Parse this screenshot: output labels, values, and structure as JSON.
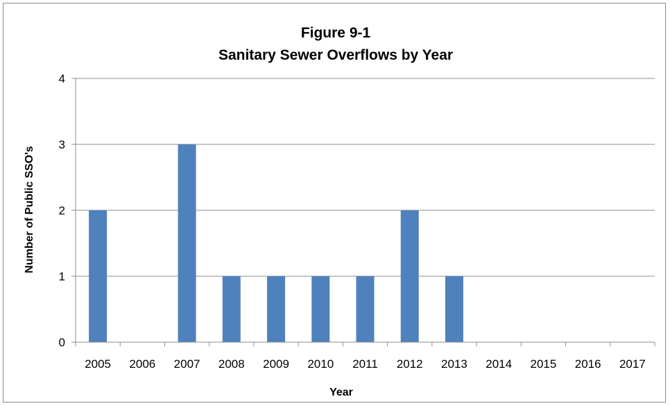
{
  "chart_data": {
    "type": "bar",
    "title": "Figure 9-1",
    "subtitle": "Sanitary Sewer Overflows by Year",
    "xlabel": "Year",
    "ylabel": "Number of Public SSO's",
    "categories": [
      "2005",
      "2006",
      "2007",
      "2008",
      "2009",
      "2010",
      "2011",
      "2012",
      "2013",
      "2014",
      "2015",
      "2016",
      "2017"
    ],
    "values": [
      2,
      0,
      3,
      1,
      1,
      1,
      1,
      2,
      1,
      0,
      0,
      0,
      0
    ],
    "ylim": [
      0,
      4
    ],
    "yticks": [
      "0",
      "1",
      "2",
      "3",
      "4"
    ],
    "grid": true,
    "legend": "none",
    "bar_color": "#4F81BD"
  }
}
